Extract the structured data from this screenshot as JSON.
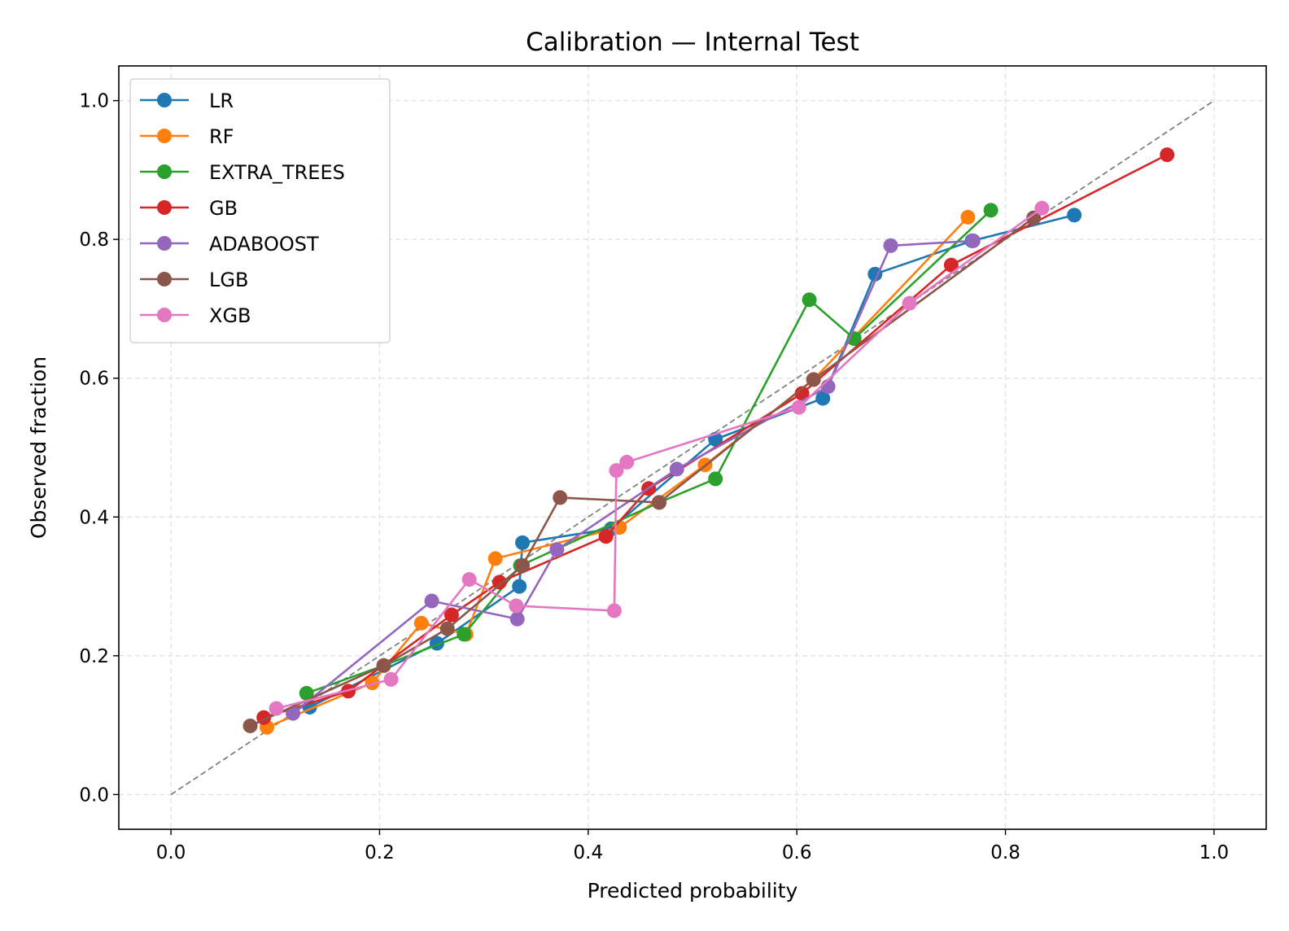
{
  "chart_data": {
    "type": "line",
    "title": "Calibration — Internal Test",
    "xlabel": "Predicted probability",
    "ylabel": "Observed fraction",
    "xlim": [
      -0.05,
      1.05
    ],
    "ylim": [
      -0.05,
      1.05
    ],
    "xticks": [
      0.0,
      0.2,
      0.4,
      0.6,
      0.8,
      1.0
    ],
    "xtick_labels": [
      "0.0",
      "0.2",
      "0.4",
      "0.6",
      "0.8",
      "1.0"
    ],
    "yticks": [
      0.0,
      0.2,
      0.4,
      0.6,
      0.8,
      1.0
    ],
    "ytick_labels": [
      "0.0",
      "0.2",
      "0.4",
      "0.6",
      "0.8",
      "1.0"
    ],
    "grid": true,
    "legend_position": "top-left",
    "reference_line": {
      "x": [
        0,
        1
      ],
      "y": [
        0,
        1
      ],
      "style": "dashed",
      "color": "#808080"
    },
    "series": [
      {
        "name": "LR",
        "color": "#1f77b4",
        "x": [
          0.133,
          0.255,
          0.334,
          0.337,
          0.422,
          0.522,
          0.625,
          0.675,
          0.768,
          0.866
        ],
        "y": [
          0.126,
          0.218,
          0.3,
          0.363,
          0.383,
          0.512,
          0.571,
          0.75,
          0.798,
          0.835
        ]
      },
      {
        "name": "RF",
        "color": "#ff7f0e",
        "x": [
          0.092,
          0.193,
          0.24,
          0.283,
          0.311,
          0.43,
          0.512,
          0.616,
          0.764
        ],
        "y": [
          0.097,
          0.161,
          0.247,
          0.231,
          0.34,
          0.385,
          0.475,
          0.598,
          0.832
        ]
      },
      {
        "name": "EXTRA_TREES",
        "color": "#2ca02c",
        "x": [
          0.13,
          0.204,
          0.281,
          0.335,
          0.468,
          0.522,
          0.612,
          0.655,
          0.786
        ],
        "y": [
          0.146,
          0.186,
          0.231,
          0.33,
          0.421,
          0.455,
          0.713,
          0.657,
          0.842
        ]
      },
      {
        "name": "GB",
        "color": "#d62728",
        "x": [
          0.089,
          0.17,
          0.269,
          0.315,
          0.417,
          0.458,
          0.605,
          0.748,
          0.955
        ],
        "y": [
          0.111,
          0.149,
          0.259,
          0.306,
          0.372,
          0.441,
          0.578,
          0.763,
          0.922
        ]
      },
      {
        "name": "ADABOOST",
        "color": "#9467bd",
        "x": [
          0.117,
          0.25,
          0.332,
          0.37,
          0.485,
          0.63,
          0.69,
          0.769
        ],
        "y": [
          0.117,
          0.279,
          0.253,
          0.353,
          0.469,
          0.588,
          0.791,
          0.798
        ]
      },
      {
        "name": "LGB",
        "color": "#8c564b",
        "x": [
          0.076,
          0.204,
          0.265,
          0.337,
          0.373,
          0.468,
          0.616,
          0.827
        ],
        "y": [
          0.099,
          0.186,
          0.239,
          0.33,
          0.428,
          0.421,
          0.598,
          0.831
        ]
      },
      {
        "name": "XGB",
        "color": "#e377c2",
        "x": [
          0.101,
          0.211,
          0.286,
          0.331,
          0.425,
          0.427,
          0.437,
          0.602,
          0.708,
          0.835
        ],
        "y": [
          0.124,
          0.166,
          0.31,
          0.272,
          0.265,
          0.467,
          0.479,
          0.558,
          0.708,
          0.845
        ]
      }
    ]
  }
}
